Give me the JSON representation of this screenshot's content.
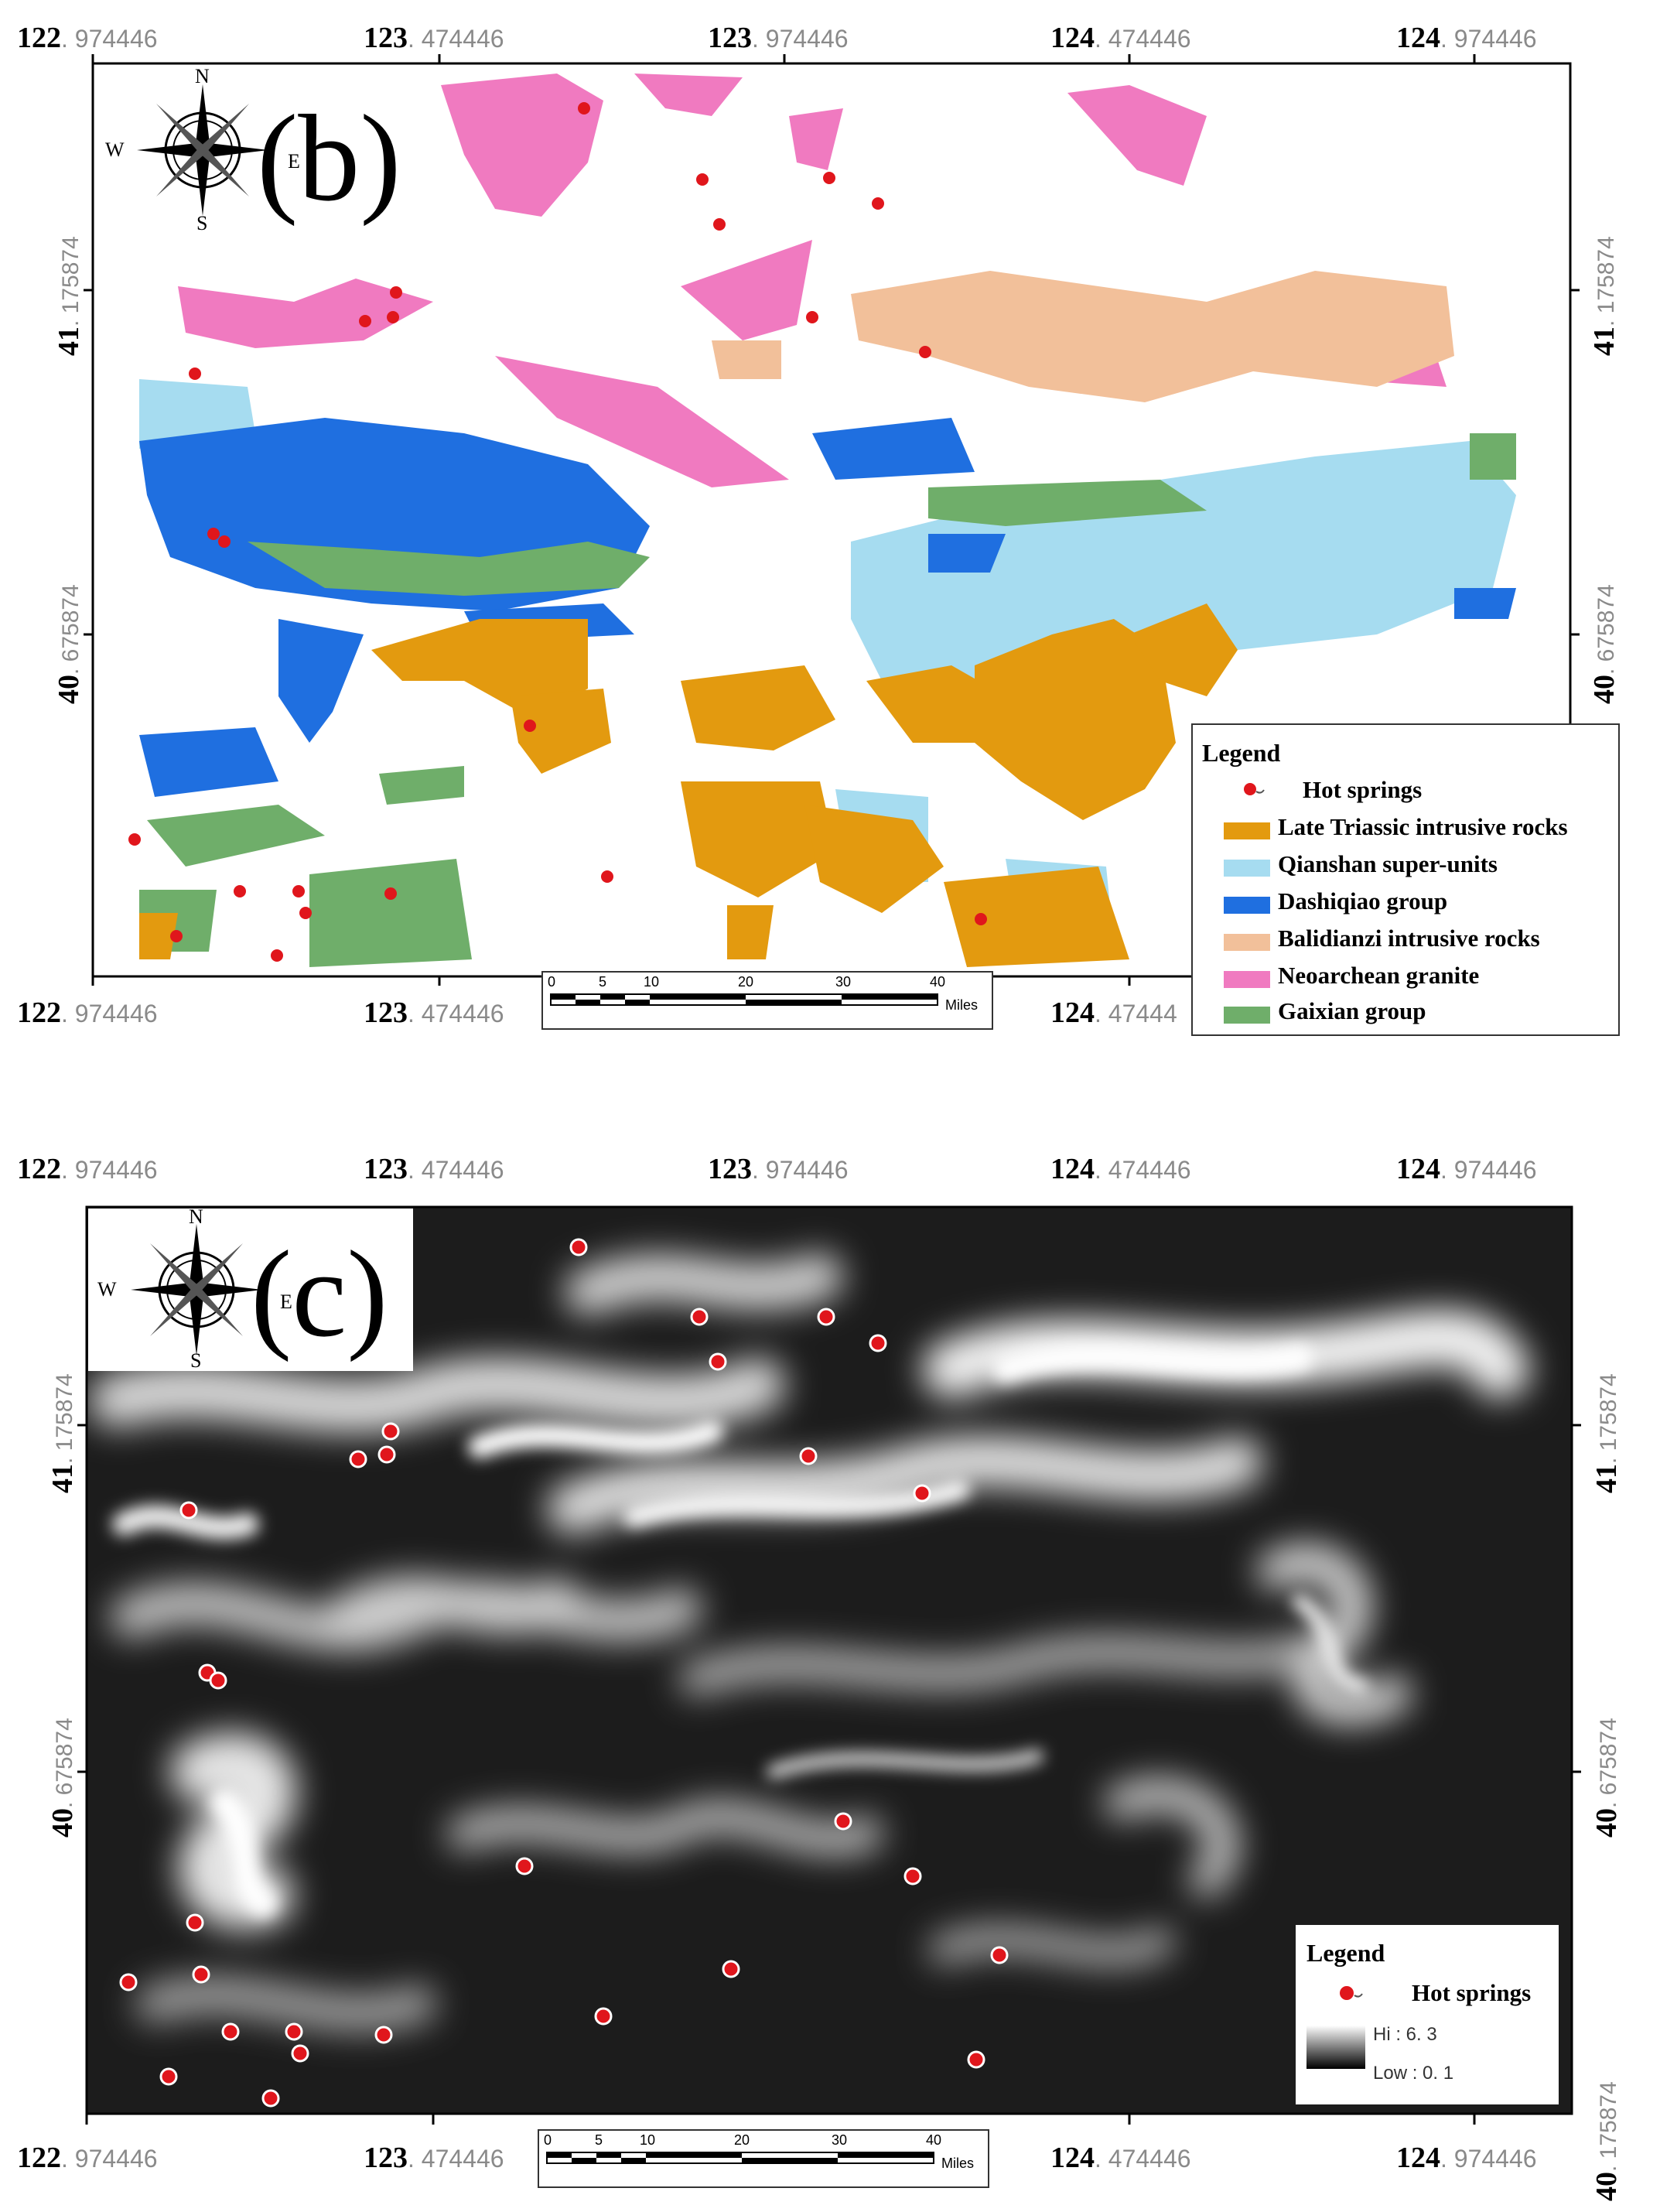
{
  "panels": {
    "b": {
      "label": "(b)"
    },
    "c": {
      "label": "(c)"
    }
  },
  "compass": {
    "n": "N",
    "s": "S",
    "w": "W",
    "e": "E"
  },
  "lon_ticks": [
    {
      "deg": "122",
      "min": ". 974446"
    },
    {
      "deg": "123",
      "min": ". 474446"
    },
    {
      "deg": "123",
      "min": ". 974446"
    },
    {
      "deg": "124",
      "min": ". 474446"
    },
    {
      "deg": "124",
      "min": ". 974446"
    }
  ],
  "lon_ticks_bottom_b": [
    {
      "deg": "122",
      "min": ". 974446"
    },
    {
      "deg": "123",
      "min": ". 474446"
    },
    {
      "deg": "124",
      "min": ". 47444"
    }
  ],
  "lon_ticks_bottom_c": [
    {
      "deg": "122",
      "min": ". 974446"
    },
    {
      "deg": "123",
      "min": ". 474446"
    },
    {
      "deg": "124",
      "min": ". 474446"
    },
    {
      "deg": "124",
      "min": ". 974446"
    }
  ],
  "lat_ticks": [
    {
      "deg": "41",
      "min": ". 175874"
    },
    {
      "deg": "40",
      "min": ". 675874"
    }
  ],
  "lat_tick_extra_c": {
    "deg": "40",
    "min": ". 175874"
  },
  "scalebar": {
    "ticks": [
      "0",
      "5",
      "10",
      "20",
      "30",
      "40"
    ],
    "units": "Miles"
  },
  "legend_b": {
    "title": "Legend",
    "items": [
      {
        "label": "Hot springs",
        "kind": "point",
        "color": "#e0161c"
      },
      {
        "label": "Late Triassic intrusive rocks",
        "kind": "fill",
        "color": "#e39a0f"
      },
      {
        "label": "Qianshan super-units",
        "kind": "fill",
        "color": "#a6dcf0"
      },
      {
        "label": "Dashiqiao group",
        "kind": "fill",
        "color": "#1f6fe0"
      },
      {
        "label": "Balidianzi intrusive rocks",
        "kind": "fill",
        "color": "#f2c09a"
      },
      {
        "label": "Neoarchean granite",
        "kind": "fill",
        "color": "#f07ac0"
      },
      {
        "label": "Gaixian group",
        "kind": "fill",
        "color": "#6fae6a"
      }
    ]
  },
  "legend_c": {
    "title": "Legend",
    "point_label": "Hot springs",
    "hi": "Hi  :  6. 3",
    "low": "Low  :  0. 1"
  }
}
